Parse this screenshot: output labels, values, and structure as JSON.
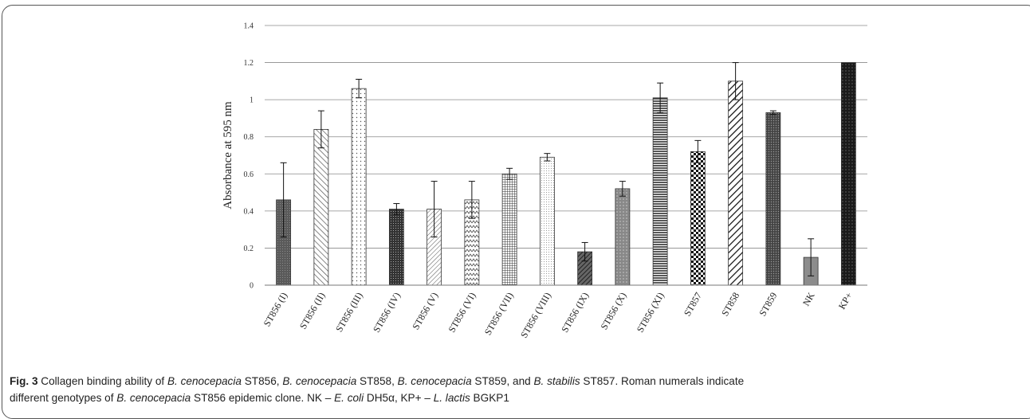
{
  "chart_data": {
    "type": "bar",
    "ylabel": "Absorbance at 595 nm",
    "xlabel": "",
    "ylim": [
      0,
      1.4
    ],
    "yticks": [
      "0",
      "0.2",
      "0.4",
      "0.6",
      "0.8",
      "1",
      "1.2",
      "1.4"
    ],
    "grid": true,
    "categories": [
      "ST856 (I)",
      "ST856 (II)",
      "ST856 (III)",
      "ST856 (IV)",
      "ST856 (V)",
      "ST856 (VI)",
      "ST856 (VII)",
      "ST856 (VIII)",
      "ST856 (IX)",
      "ST856 (X)",
      "ST856 (XI)",
      "ST857",
      "ST858",
      "ST859",
      "NK",
      "KP+"
    ],
    "values": [
      0.46,
      0.84,
      1.06,
      0.41,
      0.41,
      0.46,
      0.6,
      0.69,
      0.18,
      0.52,
      1.01,
      0.72,
      1.1,
      0.93,
      0.15,
      1.2
    ],
    "errors": [
      0.2,
      0.1,
      0.05,
      0.03,
      0.15,
      0.1,
      0.03,
      0.02,
      0.05,
      0.04,
      0.08,
      0.06,
      0.1,
      0.01,
      0.1,
      0.0
    ],
    "patterns": [
      "dark",
      "diag-wide",
      "dots-sparse",
      "crosshatch-dense",
      "diag-thin",
      "zigzag",
      "grid",
      "dots-fine",
      "diag-dark",
      "cross-gray",
      "horizontal",
      "checker",
      "diag-bold",
      "dots-dense",
      "gray",
      "solid-dark"
    ]
  },
  "caption": {
    "label": "Fig. 3",
    "line1_a": "Collagen binding ability of ",
    "line1_b": "B. cenocepacia",
    "line1_c": " ST856, ",
    "line1_d": "B. cenocepacia",
    "line1_e": " ST858, ",
    "line1_f": "B. cenocepacia",
    "line1_g": " ST859, and ",
    "line1_h": "B. stabilis",
    "line1_i": " ST857. Roman numerals indicate",
    "line2_a": "different genotypes of ",
    "line2_b": "B. cenocepacia",
    "line2_c": " ST856 epidemic clone. NK – ",
    "line2_d": "E. coli",
    "line2_e": " DH5α, KP+ – ",
    "line2_f": "L. lactis",
    "line2_g": " BGKP1"
  }
}
